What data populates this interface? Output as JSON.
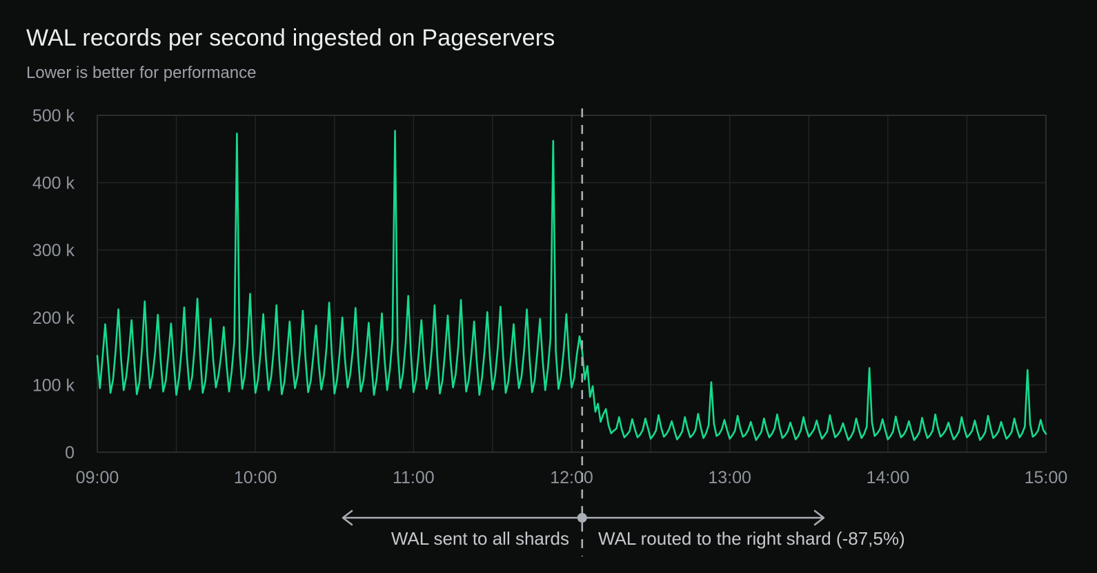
{
  "header": {
    "title": "WAL records per second ingested on Pageservers",
    "subtitle": "Lower is better for performance"
  },
  "colors": {
    "background": "#0C0D0D",
    "line": "#15DB8C",
    "grid": "#212424",
    "plot_border": "#303434",
    "title_text": "#ECEEF0",
    "subtitle_text": "#9CA2A8",
    "tick_text": "#8F969D",
    "annotation_text": "#C5C8CC",
    "annotation_line": "#A9AFB4"
  },
  "chart_data": {
    "type": "line",
    "title": "WAL records per second ingested on Pageservers",
    "subtitle": "Lower is better for performance",
    "grid": true,
    "legend": "none",
    "x_axis": {
      "start": "09:00",
      "end": "15:00",
      "tick_labels": [
        "09:00",
        "10:00",
        "11:00",
        "12:00",
        "13:00",
        "14:00",
        "15:00"
      ],
      "tick_interval_minutes": 60,
      "gridline_interval_minutes": 30,
      "total_minutes": 360
    },
    "y_axis": {
      "ticks": [
        {
          "label": "0",
          "value_k": 0
        },
        {
          "label": "100 k",
          "value_k": 100
        },
        {
          "label": "200 k",
          "value_k": 200
        },
        {
          "label": "300 k",
          "value_k": 300
        },
        {
          "label": "400 k",
          "value_k": 400
        },
        {
          "label": "500 k",
          "value_k": 500
        }
      ],
      "ylim_k": [
        0,
        500
      ]
    },
    "series": [
      {
        "name": "WAL records per second",
        "unit": "thousands of records/s",
        "sample_interval_minutes": 1,
        "start_time": "09:00",
        "values_k": [
          143,
          95,
          140,
          190,
          138,
          88,
          108,
          152,
          212,
          140,
          92,
          112,
          148,
          196,
          136,
          86,
          104,
          155,
          224,
          144,
          95,
          115,
          150,
          204,
          138,
          90,
          106,
          146,
          191,
          134,
          85,
          110,
          152,
          215,
          142,
          93,
          112,
          158,
          228,
          146,
          88,
          105,
          148,
          198,
          136,
          96,
          114,
          144,
          186,
          132,
          90,
          120,
          165,
          473,
          150,
          94,
          115,
          160,
          235,
          146,
          88,
          108,
          150,
          205,
          140,
          92,
          112,
          154,
          218,
          142,
          86,
          104,
          146,
          194,
          135,
          95,
          113,
          152,
          210,
          140,
          89,
          106,
          144,
          188,
          133,
          93,
          114,
          156,
          222,
          145,
          87,
          108,
          148,
          200,
          138,
          96,
          116,
          153,
          214,
          141,
          90,
          107,
          145,
          192,
          134,
          85,
          109,
          150,
          206,
          139,
          92,
          122,
          168,
          477,
          152,
          95,
          117,
          162,
          232,
          148,
          89,
          108,
          149,
          196,
          137,
          94,
          113,
          155,
          218,
          143,
          87,
          106,
          151,
          203,
          139,
          96,
          115,
          158,
          226,
          145,
          90,
          108,
          147,
          194,
          135,
          85,
          110,
          152,
          208,
          141,
          93,
          114,
          156,
          216,
          143,
          88,
          105,
          145,
          190,
          134,
          95,
          112,
          153,
          212,
          142,
          89,
          107,
          149,
          198,
          137,
          92,
          124,
          170,
          462,
          150,
          94,
          112,
          150,
          205,
          140,
          96,
          110,
          145,
          172,
          150,
          108,
          128,
          82,
          98,
          60,
          72,
          45,
          56,
          64,
          40,
          28,
          32,
          35,
          52,
          34,
          22,
          26,
          31,
          49,
          34,
          22,
          26,
          33,
          50,
          35,
          20,
          25,
          32,
          55,
          36,
          23,
          27,
          34,
          46,
          32,
          19,
          24,
          31,
          52,
          35,
          22,
          26,
          33,
          57,
          37,
          21,
          28,
          40,
          104,
          42,
          24,
          27,
          34,
          48,
          33,
          20,
          25,
          32,
          54,
          36,
          23,
          26,
          33,
          45,
          31,
          18,
          24,
          30,
          50,
          34,
          22,
          27,
          35,
          56,
          36,
          21,
          25,
          31,
          44,
          32,
          19,
          24,
          33,
          52,
          35,
          23,
          28,
          34,
          47,
          32,
          20,
          25,
          31,
          55,
          37,
          22,
          26,
          32,
          43,
          30,
          18,
          23,
          31,
          50,
          34,
          21,
          27,
          38,
          125,
          44,
          24,
          28,
          34,
          49,
          33,
          19,
          24,
          31,
          53,
          35,
          22,
          26,
          33,
          46,
          31,
          18,
          23,
          30,
          51,
          34,
          21,
          25,
          32,
          56,
          36,
          23,
          27,
          33,
          44,
          30,
          19,
          24,
          31,
          52,
          35,
          22,
          26,
          32,
          47,
          31,
          18,
          23,
          30,
          54,
          36,
          21,
          25,
          31,
          45,
          32,
          20,
          24,
          30,
          50,
          34,
          22,
          28,
          38,
          122,
          42,
          23,
          26,
          32,
          48,
          33,
          27
        ]
      }
    ],
    "annotations": {
      "divider_minute": 184,
      "divider_time": "12:04",
      "divider_style": "dashed-vertical",
      "arrow": "double-headed horizontal with midpoint dot at divider",
      "left_label": "WAL sent to all shards",
      "right_label": "WAL routed to the right shard (-87,5%)"
    }
  }
}
